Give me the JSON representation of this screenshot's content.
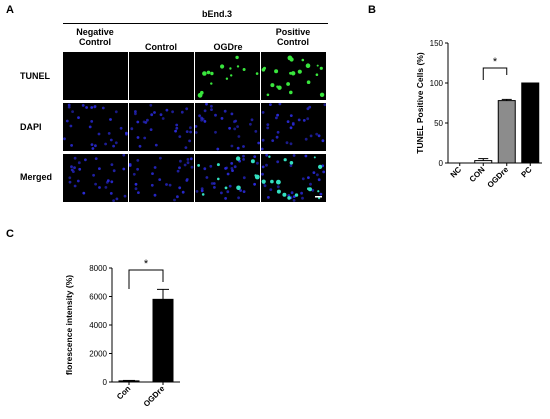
{
  "panels": {
    "a": "A",
    "b": "B",
    "c": "C"
  },
  "panel_a": {
    "cell_line": "bEnd.3",
    "columns": [
      "Negative\nControl",
      "Control",
      "OGDre",
      "Positive\nControl"
    ],
    "rows": [
      "TUNEL",
      "DAPI",
      "Merged"
    ]
  },
  "chart_data": [
    {
      "type": "bar",
      "ylabel": "TUNEL Positive Cells (%)",
      "xlabel": "",
      "categories": [
        "NC",
        "CON",
        "OGDre",
        "PC"
      ],
      "values": [
        0,
        3,
        78,
        100
      ],
      "errors": [
        0,
        2.5,
        1.5,
        0
      ],
      "bar_colors": [
        "#000000",
        "#ffffff",
        "#8c8c8c",
        "#000000"
      ],
      "ylim": [
        0,
        150
      ],
      "yticks": [
        0,
        50,
        100,
        150
      ],
      "significance": {
        "from": "CON",
        "to": "OGDre",
        "label": "*"
      }
    },
    {
      "type": "bar",
      "ylabel": "florescence intensity (%)",
      "xlabel": "",
      "categories": [
        "Con",
        "OGDre"
      ],
      "values": [
        80,
        5800
      ],
      "errors": [
        30,
        700
      ],
      "bar_colors": [
        "#000000",
        "#000000"
      ],
      "ylim": [
        0,
        8000
      ],
      "yticks": [
        0,
        2000,
        4000,
        6000,
        8000
      ],
      "significance": {
        "from": "Con",
        "to": "OGDre",
        "label": "*"
      }
    }
  ]
}
